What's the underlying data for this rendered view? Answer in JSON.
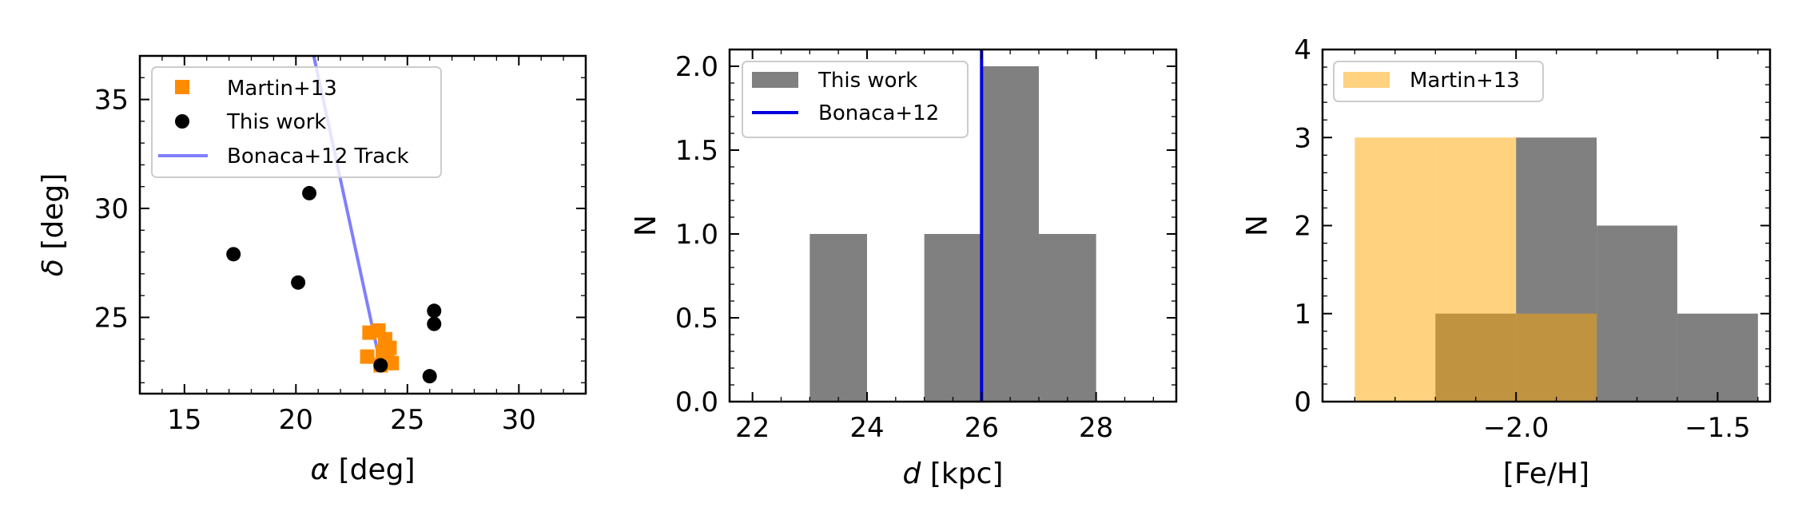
{
  "chart_data": [
    {
      "type": "scatter",
      "xlabel_sym": "α",
      "xlabel_rest": " [deg]",
      "ylabel_sym": "δ",
      "ylabel_rest": " [deg]",
      "xlim": [
        13,
        33
      ],
      "ylim": [
        21.5,
        37
      ],
      "xticks": [
        15,
        20,
        25,
        30
      ],
      "yticks": [
        25,
        30,
        35
      ],
      "legend_position": "top-left",
      "series": [
        {
          "name": "Martin+13",
          "marker": "square",
          "color": "#ff8c00",
          "points": [
            [
              23.3,
              24.3
            ],
            [
              23.7,
              24.4
            ],
            [
              23.2,
              23.2
            ],
            [
              23.9,
              23.4
            ],
            [
              24.1,
              23.0
            ],
            [
              24.3,
              22.9
            ],
            [
              23.8,
              22.8
            ],
            [
              24.0,
              24.0
            ],
            [
              24.2,
              23.6
            ]
          ]
        },
        {
          "name": "This work",
          "marker": "circle",
          "color": "#000000",
          "points": [
            [
              20.6,
              30.7
            ],
            [
              17.2,
              27.9
            ],
            [
              20.1,
              26.6
            ],
            [
              26.2,
              25.3
            ],
            [
              26.2,
              24.7
            ],
            [
              23.8,
              22.8
            ],
            [
              26.0,
              22.3
            ]
          ]
        },
        {
          "name": "Bonaca+12 Track",
          "marker": "line",
          "color": "#7f7fff",
          "points": [
            [
              20.8,
              37.0
            ],
            [
              23.8,
              22.8
            ]
          ]
        }
      ]
    },
    {
      "type": "bar",
      "xlabel_sym": "d",
      "xlabel_rest": " [kpc]",
      "ylabel": "N",
      "xlim": [
        21.6,
        29.4
      ],
      "ylim": [
        0,
        2.1
      ],
      "xticks": [
        22,
        24,
        26,
        28
      ],
      "yticks": [
        "0.0",
        "0.5",
        "1.0",
        "1.5",
        "2.0"
      ],
      "legend_position": "top-left",
      "series": [
        {
          "name": "This work",
          "color": "#808080",
          "bins": [
            [
              23,
              24,
              1
            ],
            [
              25,
              26,
              1
            ],
            [
              26,
              27,
              2
            ],
            [
              27,
              28,
              1
            ]
          ]
        }
      ],
      "vline": {
        "name": "Bonaca+12",
        "x": 26,
        "color": "#0000dd"
      }
    },
    {
      "type": "bar",
      "xlabel": "[Fe/H]",
      "ylabel": "N",
      "xlim": [
        -2.48,
        -1.37
      ],
      "ylim": [
        0,
        4
      ],
      "xticks": [
        "−2.0",
        "−1.5"
      ],
      "xtick_values": [
        -2.0,
        -1.5
      ],
      "yticks": [
        0,
        1,
        2,
        3,
        4
      ],
      "legend_position": "top-left",
      "series": [
        {
          "name": "",
          "color": "#808080",
          "bins": [
            [
              -2.2,
              -2.0,
              1
            ],
            [
              -2.0,
              -1.8,
              3
            ],
            [
              -1.8,
              -1.6,
              2
            ],
            [
              -1.6,
              -1.4,
              1
            ]
          ]
        },
        {
          "name": "Martin+13",
          "color": "#ffa500",
          "opacity": 0.5,
          "bins": [
            [
              -2.4,
              -2.2,
              3
            ],
            [
              -2.2,
              -2.0,
              3
            ],
            [
              -2.0,
              -1.8,
              1
            ]
          ]
        }
      ]
    }
  ]
}
